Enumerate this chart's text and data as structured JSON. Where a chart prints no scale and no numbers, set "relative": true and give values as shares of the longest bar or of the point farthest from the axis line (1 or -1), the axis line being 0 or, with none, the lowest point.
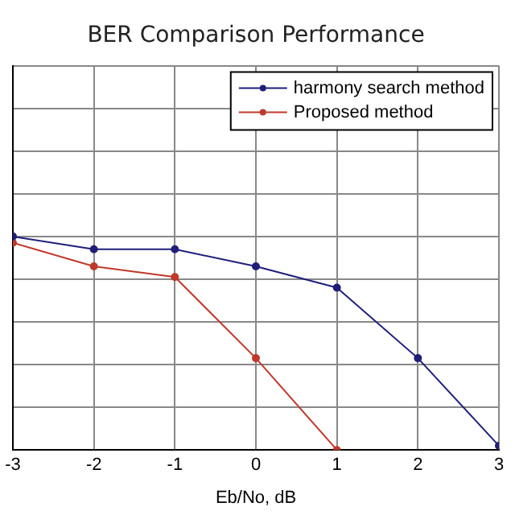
{
  "chart_data": {
    "type": "line",
    "title": "BER Comparison Performance",
    "xlabel": "Eb/No, dB",
    "x": [
      -3,
      -2,
      -1,
      0,
      1,
      2,
      3
    ],
    "xlim": [
      -3,
      3
    ],
    "xticks": [
      -3,
      -2,
      -1,
      0,
      1,
      2,
      3
    ],
    "relative": true,
    "grid": true,
    "legend": "top right",
    "marker": "circle",
    "line_style": "solid",
    "series": [
      {
        "name": "harmony search method",
        "color": "#1f1f7a",
        "values": [
          1,
          0.94,
          0.94,
          0.86,
          0.76,
          0.43,
          0.02
        ]
      },
      {
        "name": "Proposed method",
        "color": "#c0392b",
        "values": [
          0.97,
          0.86,
          0.81,
          0.43,
          0,
          null,
          null
        ]
      }
    ]
  }
}
